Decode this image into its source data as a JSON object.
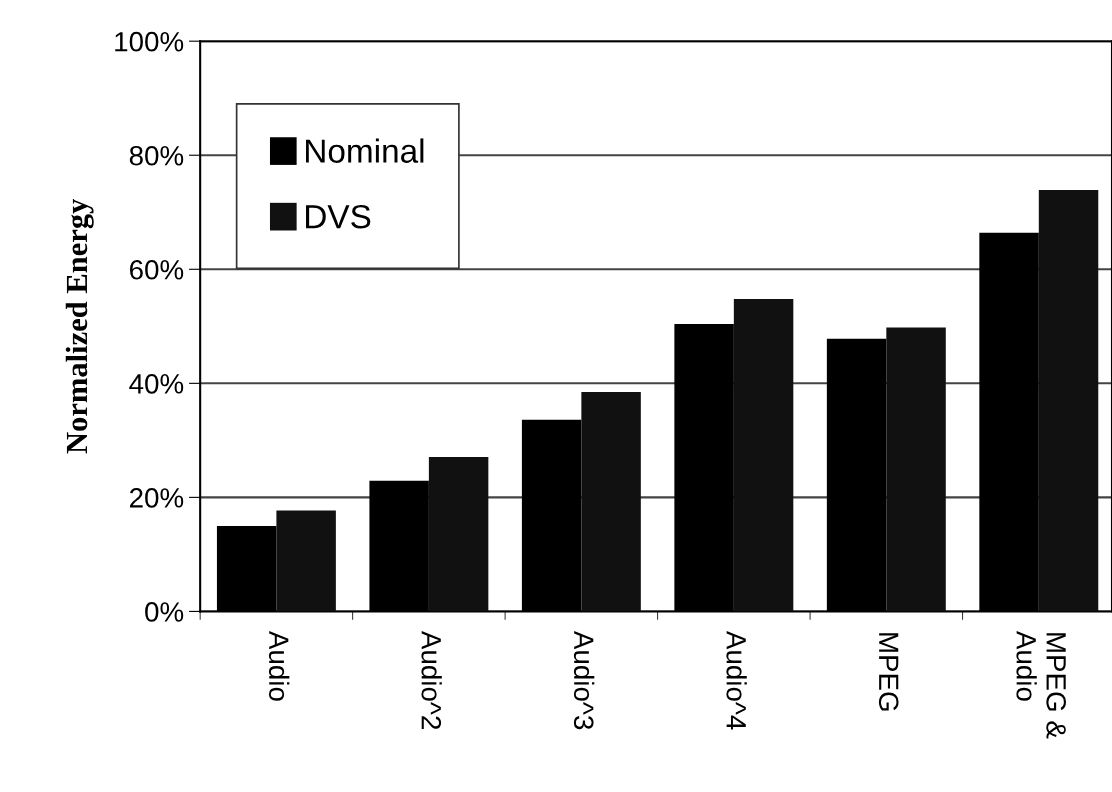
{
  "chart_data": {
    "type": "bar",
    "ylabel": "Normalized Energy",
    "categories": [
      "Audio",
      "Audio^2",
      "Audio^3",
      "Audio^4",
      "MPEG",
      "MPEG &\nAudio"
    ],
    "series": [
      {
        "name": "Nominal",
        "color": "#000000",
        "values": [
          15.0,
          22.9,
          33.6,
          50.4,
          47.8,
          66.4
        ]
      },
      {
        "name": "DVS",
        "color": "#111111",
        "values": [
          17.7,
          27.1,
          38.5,
          54.8,
          49.8,
          73.9
        ]
      }
    ],
    "ylim": [
      0,
      100
    ],
    "yticks": [
      {
        "value": 0,
        "label": "0%"
      },
      {
        "value": 20,
        "label": "20%"
      },
      {
        "value": 40,
        "label": "40%"
      },
      {
        "value": 60,
        "label": "60%"
      },
      {
        "value": 80,
        "label": "80%"
      },
      {
        "value": 100,
        "label": "100%"
      }
    ],
    "grid": "y",
    "legend": "top left"
  }
}
